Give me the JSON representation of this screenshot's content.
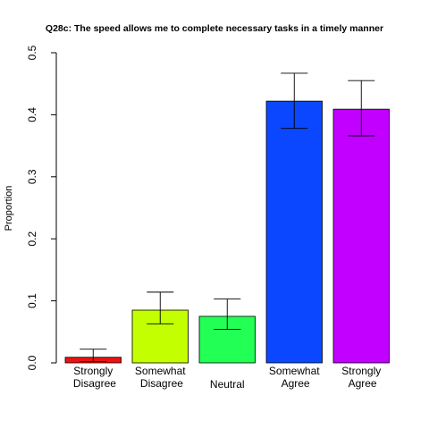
{
  "chart_data": {
    "type": "bar",
    "title": "Q28c: The speed allows me to complete necessary tasks in a timely manner",
    "xlabel": "",
    "ylabel": "Proportion",
    "ylim": [
      0,
      0.5
    ],
    "yticks": [
      0,
      0.1,
      0.2,
      0.3,
      0.4,
      0.5
    ],
    "ytick_labels": [
      "0.0",
      "0.1",
      "0.2",
      "0.3",
      "0.4",
      "0.5"
    ],
    "grid": false,
    "legend": "none",
    "categories": [
      [
        "Strongly",
        "Disagree"
      ],
      [
        "Somewhat",
        "Disagree"
      ],
      [
        "Neutral"
      ],
      [
        "Somewhat",
        "Agree"
      ],
      [
        "Strongly",
        "Agree"
      ]
    ],
    "values": [
      0.009,
      0.085,
      0.075,
      0.422,
      0.409
    ],
    "error_low": [
      0.002,
      0.063,
      0.054,
      0.378,
      0.366
    ],
    "error_high": [
      0.022,
      0.114,
      0.103,
      0.467,
      0.455
    ],
    "colors": [
      "#ee1111",
      "#c4ff00",
      "#22ff55",
      "#0a47ff",
      "#c100ff"
    ]
  }
}
